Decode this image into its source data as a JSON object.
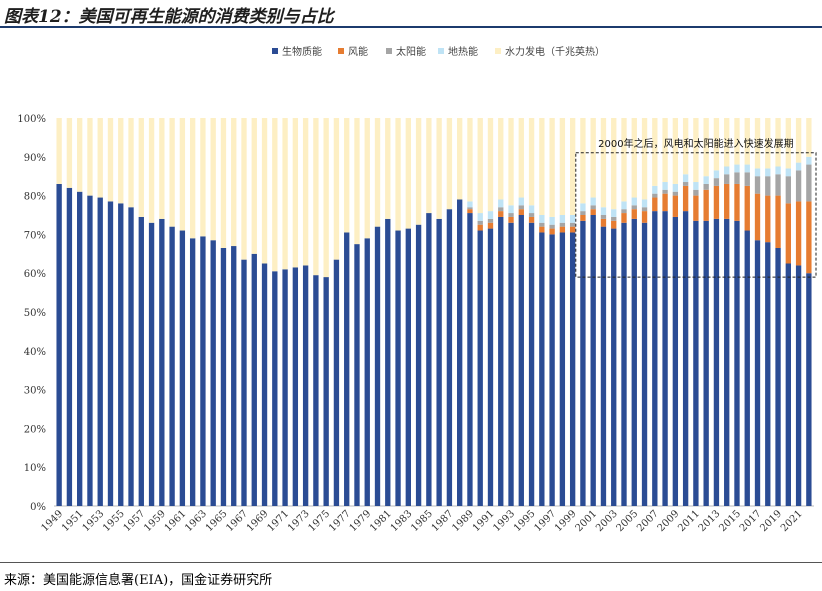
{
  "figure_title": "图表12：美国可再生能源的消费类别与占比",
  "source": "来源：美国能源信息署(EIA)，国金证券研究所",
  "colors": {
    "biomass": "#2b4c94",
    "wind": "#e67c31",
    "solar": "#a5a5a5",
    "geothermal": "#bfe3f5",
    "hydro": "#fdefc4"
  },
  "chart_data": {
    "type": "bar",
    "stacked": true,
    "title": "",
    "xlabel": "",
    "ylabel": "",
    "ylim": [
      0,
      100
    ],
    "y_ticks": [
      "0%",
      "10%",
      "20%",
      "30%",
      "40%",
      "50%",
      "60%",
      "70%",
      "80%",
      "90%",
      "100%"
    ],
    "categories": [
      "1949",
      "1950",
      "1951",
      "1952",
      "1953",
      "1954",
      "1955",
      "1956",
      "1957",
      "1958",
      "1959",
      "1960",
      "1961",
      "1962",
      "1963",
      "1964",
      "1965",
      "1966",
      "1967",
      "1968",
      "1969",
      "1970",
      "1971",
      "1972",
      "1973",
      "1974",
      "1975",
      "1976",
      "1977",
      "1978",
      "1979",
      "1980",
      "1981",
      "1982",
      "1983",
      "1984",
      "1985",
      "1986",
      "1987",
      "1988",
      "1989",
      "1990",
      "1991",
      "1992",
      "1993",
      "1994",
      "1995",
      "1996",
      "1997",
      "1998",
      "1999",
      "2000",
      "2001",
      "2002",
      "2003",
      "2004",
      "2005",
      "2006",
      "2007",
      "2008",
      "2009",
      "2010",
      "2011",
      "2012",
      "2013",
      "2014",
      "2015",
      "2016",
      "2017",
      "2018",
      "2019",
      "2020",
      "2021",
      "2022"
    ],
    "x_tick_labels": [
      "1949",
      "1951",
      "1953",
      "1955",
      "1957",
      "1959",
      "1961",
      "1963",
      "1965",
      "1967",
      "1969",
      "1971",
      "1973",
      "1975",
      "1977",
      "1979",
      "1981",
      "1983",
      "1985",
      "1987",
      "1989",
      "1991",
      "1993",
      "1995",
      "1997",
      "1999",
      "2001",
      "2003",
      "2005",
      "2007",
      "2009",
      "2011",
      "2013",
      "2015",
      "2017",
      "2019",
      "2021"
    ],
    "legend": [
      "生物质能",
      "风能",
      "太阳能",
      "地热能",
      "水力发电（千兆英热）"
    ],
    "legend_position": "top",
    "series": [
      {
        "name": "生物质能",
        "values": [
          83,
          82,
          81,
          80,
          79.5,
          78.5,
          78,
          77,
          74.5,
          73,
          74,
          72,
          71,
          69,
          69.5,
          68.5,
          66.5,
          67,
          63.5,
          65,
          62.5,
          60.5,
          61,
          61.5,
          62,
          59.5,
          59,
          63.5,
          70.5,
          67.5,
          69,
          72,
          74,
          71,
          71.5,
          72.5,
          75.5,
          74,
          76.5,
          79,
          75.5,
          71,
          71.5,
          74.5,
          73,
          75,
          73,
          70.5,
          70,
          70.5,
          70.5,
          73.5,
          75,
          72,
          71.5,
          73,
          74,
          73,
          76,
          76,
          74.5,
          76,
          73.5,
          73.5,
          74,
          74,
          73.5,
          71,
          68.5,
          68,
          66.5,
          62.5,
          62,
          60
        ]
      },
      {
        "name": "风能",
        "values": [
          0,
          0,
          0,
          0,
          0,
          0,
          0,
          0,
          0,
          0,
          0,
          0,
          0,
          0,
          0,
          0,
          0,
          0,
          0,
          0,
          0,
          0,
          0,
          0,
          0,
          0,
          0,
          0,
          0,
          0,
          0,
          0,
          0,
          0,
          0,
          0,
          0,
          0,
          0,
          0,
          1,
          1.5,
          1.5,
          1.5,
          1.5,
          1.5,
          1.5,
          1.5,
          1.5,
          1.5,
          1.5,
          1.5,
          1.5,
          2,
          2,
          2.5,
          2.5,
          3,
          3.5,
          4.5,
          5.5,
          6.5,
          6.5,
          8,
          8.5,
          9,
          9.5,
          11.5,
          12,
          12,
          13.5,
          15.5,
          16.5,
          18.5
        ]
      },
      {
        "name": "太阳能",
        "values": [
          0,
          0,
          0,
          0,
          0,
          0,
          0,
          0,
          0,
          0,
          0,
          0,
          0,
          0,
          0,
          0,
          0,
          0,
          0,
          0,
          0,
          0,
          0,
          0,
          0,
          0,
          0,
          0,
          0,
          0,
          0,
          0,
          0,
          0,
          0,
          0,
          0,
          0,
          0,
          0,
          0.5,
          1,
          1,
          1,
          1,
          1,
          1,
          1,
          1,
          1,
          1,
          1,
          1,
          1,
          1,
          1,
          1,
          1,
          1,
          1,
          1,
          1,
          1.5,
          1.5,
          2,
          2.5,
          3,
          3.5,
          4.5,
          5,
          5.5,
          7,
          8,
          9.5
        ]
      },
      {
        "name": "地热能",
        "values": [
          0,
          0,
          0,
          0,
          0,
          0,
          0,
          0,
          0,
          0,
          0,
          0,
          0,
          0,
          0,
          0,
          0,
          0,
          0,
          0,
          0,
          0,
          0,
          0,
          0,
          0,
          0,
          0,
          0,
          0,
          0,
          0,
          0,
          0,
          0,
          0,
          0,
          0,
          0,
          0,
          1.5,
          2,
          2,
          2,
          2,
          2,
          2,
          2,
          2,
          2,
          2,
          2,
          2,
          2,
          2,
          2,
          2,
          2,
          2,
          2,
          2,
          2,
          2,
          2,
          2,
          2,
          2,
          2,
          2,
          2,
          2,
          2,
          2,
          2
        ]
      },
      {
        "name": "水力发电（千兆英热）",
        "values": [
          17,
          18,
          19,
          20,
          20.5,
          21.5,
          22,
          23,
          25.5,
          27,
          26,
          28,
          29,
          31,
          30.5,
          31.5,
          33.5,
          33,
          36.5,
          35,
          37.5,
          39.5,
          39,
          38.5,
          38,
          40.5,
          41,
          36.5,
          29.5,
          32.5,
          31,
          28,
          26,
          29,
          28.5,
          27.5,
          24.5,
          26,
          23.5,
          21,
          21.5,
          24.5,
          24,
          21,
          22.5,
          20.5,
          22.5,
          25,
          25.5,
          25,
          25,
          22,
          20.5,
          23,
          23.5,
          21.5,
          20.5,
          21,
          17.5,
          16.5,
          17,
          14.5,
          16.5,
          15,
          13.5,
          12.5,
          12,
          12,
          13,
          13,
          12.5,
          13,
          11.5,
          10
        ]
      }
    ],
    "annotations": [
      {
        "text": "2000年之后，风电和太阳能进入快速发展期",
        "from": "2000",
        "to": "2022",
        "y_range": [
          59,
          90
        ],
        "style": "dashed-box"
      }
    ]
  }
}
